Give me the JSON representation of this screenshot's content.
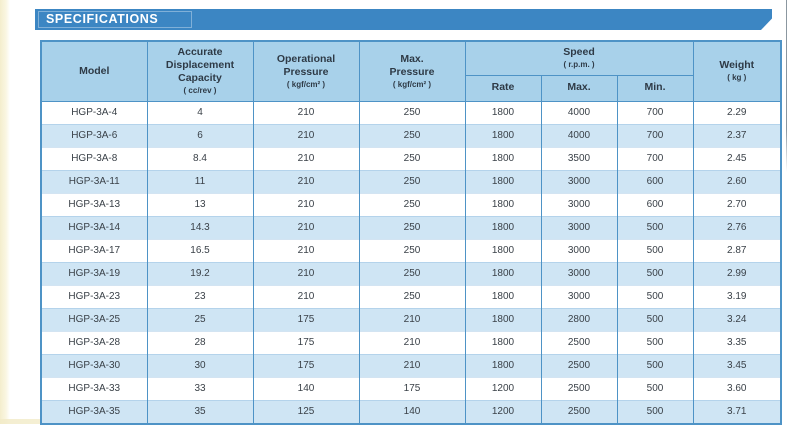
{
  "banner": {
    "title": "SPECIFICATIONS"
  },
  "table": {
    "header": {
      "model": "Model",
      "capacity_title": "Accurate\nDisplacement\nCapacity",
      "capacity_unit": "( cc/rev )",
      "op_pressure_title": "Operational\nPressure",
      "op_pressure_unit": "( kgf/cm² )",
      "max_pressure_title": "Max.\nPressure",
      "max_pressure_unit": "( kgf/cm² )",
      "speed_title": "Speed",
      "speed_unit": "( r.p.m. )",
      "rate": "Rate",
      "max": "Max.",
      "min": "Min.",
      "weight_title": "Weight",
      "weight_unit": "( kg )"
    },
    "columns": [
      "model",
      "capacity",
      "op_pressure",
      "max_pressure",
      "rate",
      "max",
      "min",
      "weight"
    ],
    "rows": [
      [
        "HGP-3A-4",
        "4",
        "210",
        "250",
        "1800",
        "4000",
        "700",
        "2.29"
      ],
      [
        "HGP-3A-6",
        "6",
        "210",
        "250",
        "1800",
        "4000",
        "700",
        "2.37"
      ],
      [
        "HGP-3A-8",
        "8.4",
        "210",
        "250",
        "1800",
        "3500",
        "700",
        "2.45"
      ],
      [
        "HGP-3A-11",
        "11",
        "210",
        "250",
        "1800",
        "3000",
        "600",
        "2.60"
      ],
      [
        "HGP-3A-13",
        "13",
        "210",
        "250",
        "1800",
        "3000",
        "600",
        "2.70"
      ],
      [
        "HGP-3A-14",
        "14.3",
        "210",
        "250",
        "1800",
        "3000",
        "500",
        "2.76"
      ],
      [
        "HGP-3A-17",
        "16.5",
        "210",
        "250",
        "1800",
        "3000",
        "500",
        "2.87"
      ],
      [
        "HGP-3A-19",
        "19.2",
        "210",
        "250",
        "1800",
        "3000",
        "500",
        "2.99"
      ],
      [
        "HGP-3A-23",
        "23",
        "210",
        "250",
        "1800",
        "3000",
        "500",
        "3.19"
      ],
      [
        "HGP-3A-25",
        "25",
        "175",
        "210",
        "1800",
        "2800",
        "500",
        "3.24"
      ],
      [
        "HGP-3A-28",
        "28",
        "175",
        "210",
        "1800",
        "2500",
        "500",
        "3.35"
      ],
      [
        "HGP-3A-30",
        "30",
        "175",
        "210",
        "1800",
        "2500",
        "500",
        "3.45"
      ],
      [
        "HGP-3A-33",
        "33",
        "140",
        "175",
        "1200",
        "2500",
        "500",
        "3.60"
      ],
      [
        "HGP-3A-35",
        "35",
        "125",
        "140",
        "1200",
        "2500",
        "500",
        "3.71"
      ]
    ]
  },
  "colors": {
    "banner_blue": "#3c86c3",
    "header_fill": "#a8d1ea",
    "row_alt_fill": "#cfe5f4",
    "border_blue": "#4e93c6",
    "text_dark": "#3a4148"
  }
}
